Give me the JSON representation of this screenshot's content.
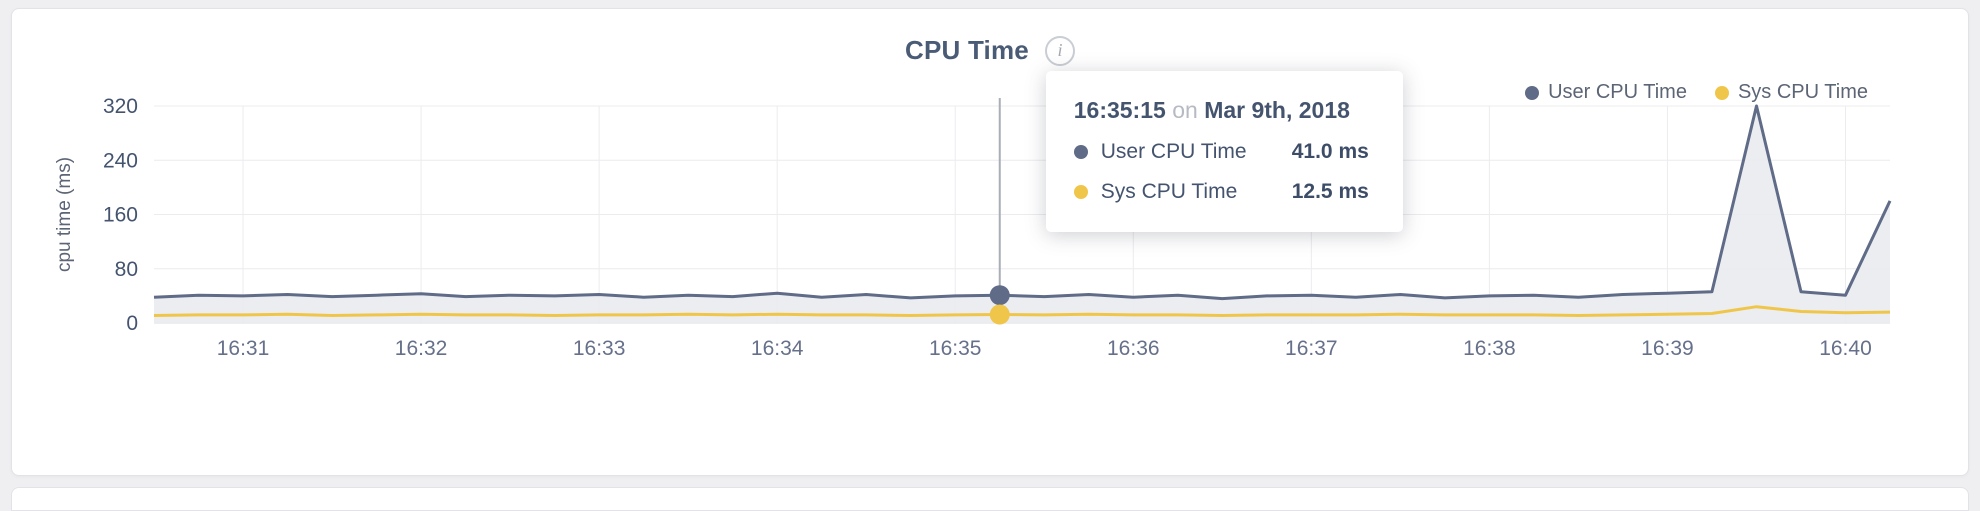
{
  "chart_data": {
    "type": "line",
    "title": "CPU Time",
    "xlabel": "",
    "ylabel": "cpu time (ms)",
    "ylim": [
      0,
      320
    ],
    "y_ticks": [
      0,
      80,
      160,
      240,
      320
    ],
    "x_ticks": [
      "16:31",
      "16:32",
      "16:33",
      "16:34",
      "16:35",
      "16:36",
      "16:37",
      "16:38",
      "16:39",
      "16:40"
    ],
    "x_domain": [
      "16:30:30",
      "16:40:15"
    ],
    "grid": true,
    "legend_position": "top-right",
    "x": [
      "16:30:30",
      "16:30:45",
      "16:31:00",
      "16:31:15",
      "16:31:30",
      "16:31:45",
      "16:32:00",
      "16:32:15",
      "16:32:30",
      "16:32:45",
      "16:33:00",
      "16:33:15",
      "16:33:30",
      "16:33:45",
      "16:34:00",
      "16:34:15",
      "16:34:30",
      "16:34:45",
      "16:35:00",
      "16:35:15",
      "16:35:30",
      "16:35:45",
      "16:36:00",
      "16:36:15",
      "16:36:30",
      "16:36:45",
      "16:37:00",
      "16:37:15",
      "16:37:30",
      "16:37:45",
      "16:38:00",
      "16:38:15",
      "16:38:30",
      "16:38:45",
      "16:39:00",
      "16:39:15",
      "16:39:30",
      "16:39:45",
      "16:40:00",
      "16:40:15"
    ],
    "series": [
      {
        "name": "User CPU Time",
        "color": "#5f6b87",
        "fill": "#e9ebef",
        "values": [
          38,
          41,
          40,
          42,
          39,
          41,
          43,
          39,
          41,
          40,
          42,
          38,
          41,
          39,
          44,
          38,
          42,
          37,
          40,
          41,
          39,
          42,
          38,
          41,
          36,
          40,
          41,
          38,
          42,
          37,
          40,
          41,
          38,
          42,
          44,
          46,
          320,
          46,
          41,
          180
        ]
      },
      {
        "name": "Sys CPU Time",
        "color": "#f0c64a",
        "values": [
          11,
          12,
          12,
          13,
          11,
          12,
          13,
          12,
          12,
          11,
          12,
          12,
          13,
          12,
          13,
          12,
          12,
          11,
          12,
          12.5,
          12,
          13,
          12,
          12,
          11,
          12,
          12,
          12,
          13,
          12,
          12,
          12,
          11,
          12,
          13,
          14,
          24,
          17,
          15,
          16
        ]
      }
    ]
  },
  "header": {
    "info_icon_glyph": "i"
  },
  "tooltip": {
    "anchor_time": "16:35:15",
    "time": "16:35:15",
    "connector": "on",
    "date": "Mar 9th, 2018",
    "rows": [
      {
        "series": "User CPU Time",
        "value": "41.0 ms",
        "color": "#5f6b87"
      },
      {
        "series": "Sys CPU Time",
        "value": "12.5 ms",
        "color": "#f0c64a"
      }
    ]
  }
}
